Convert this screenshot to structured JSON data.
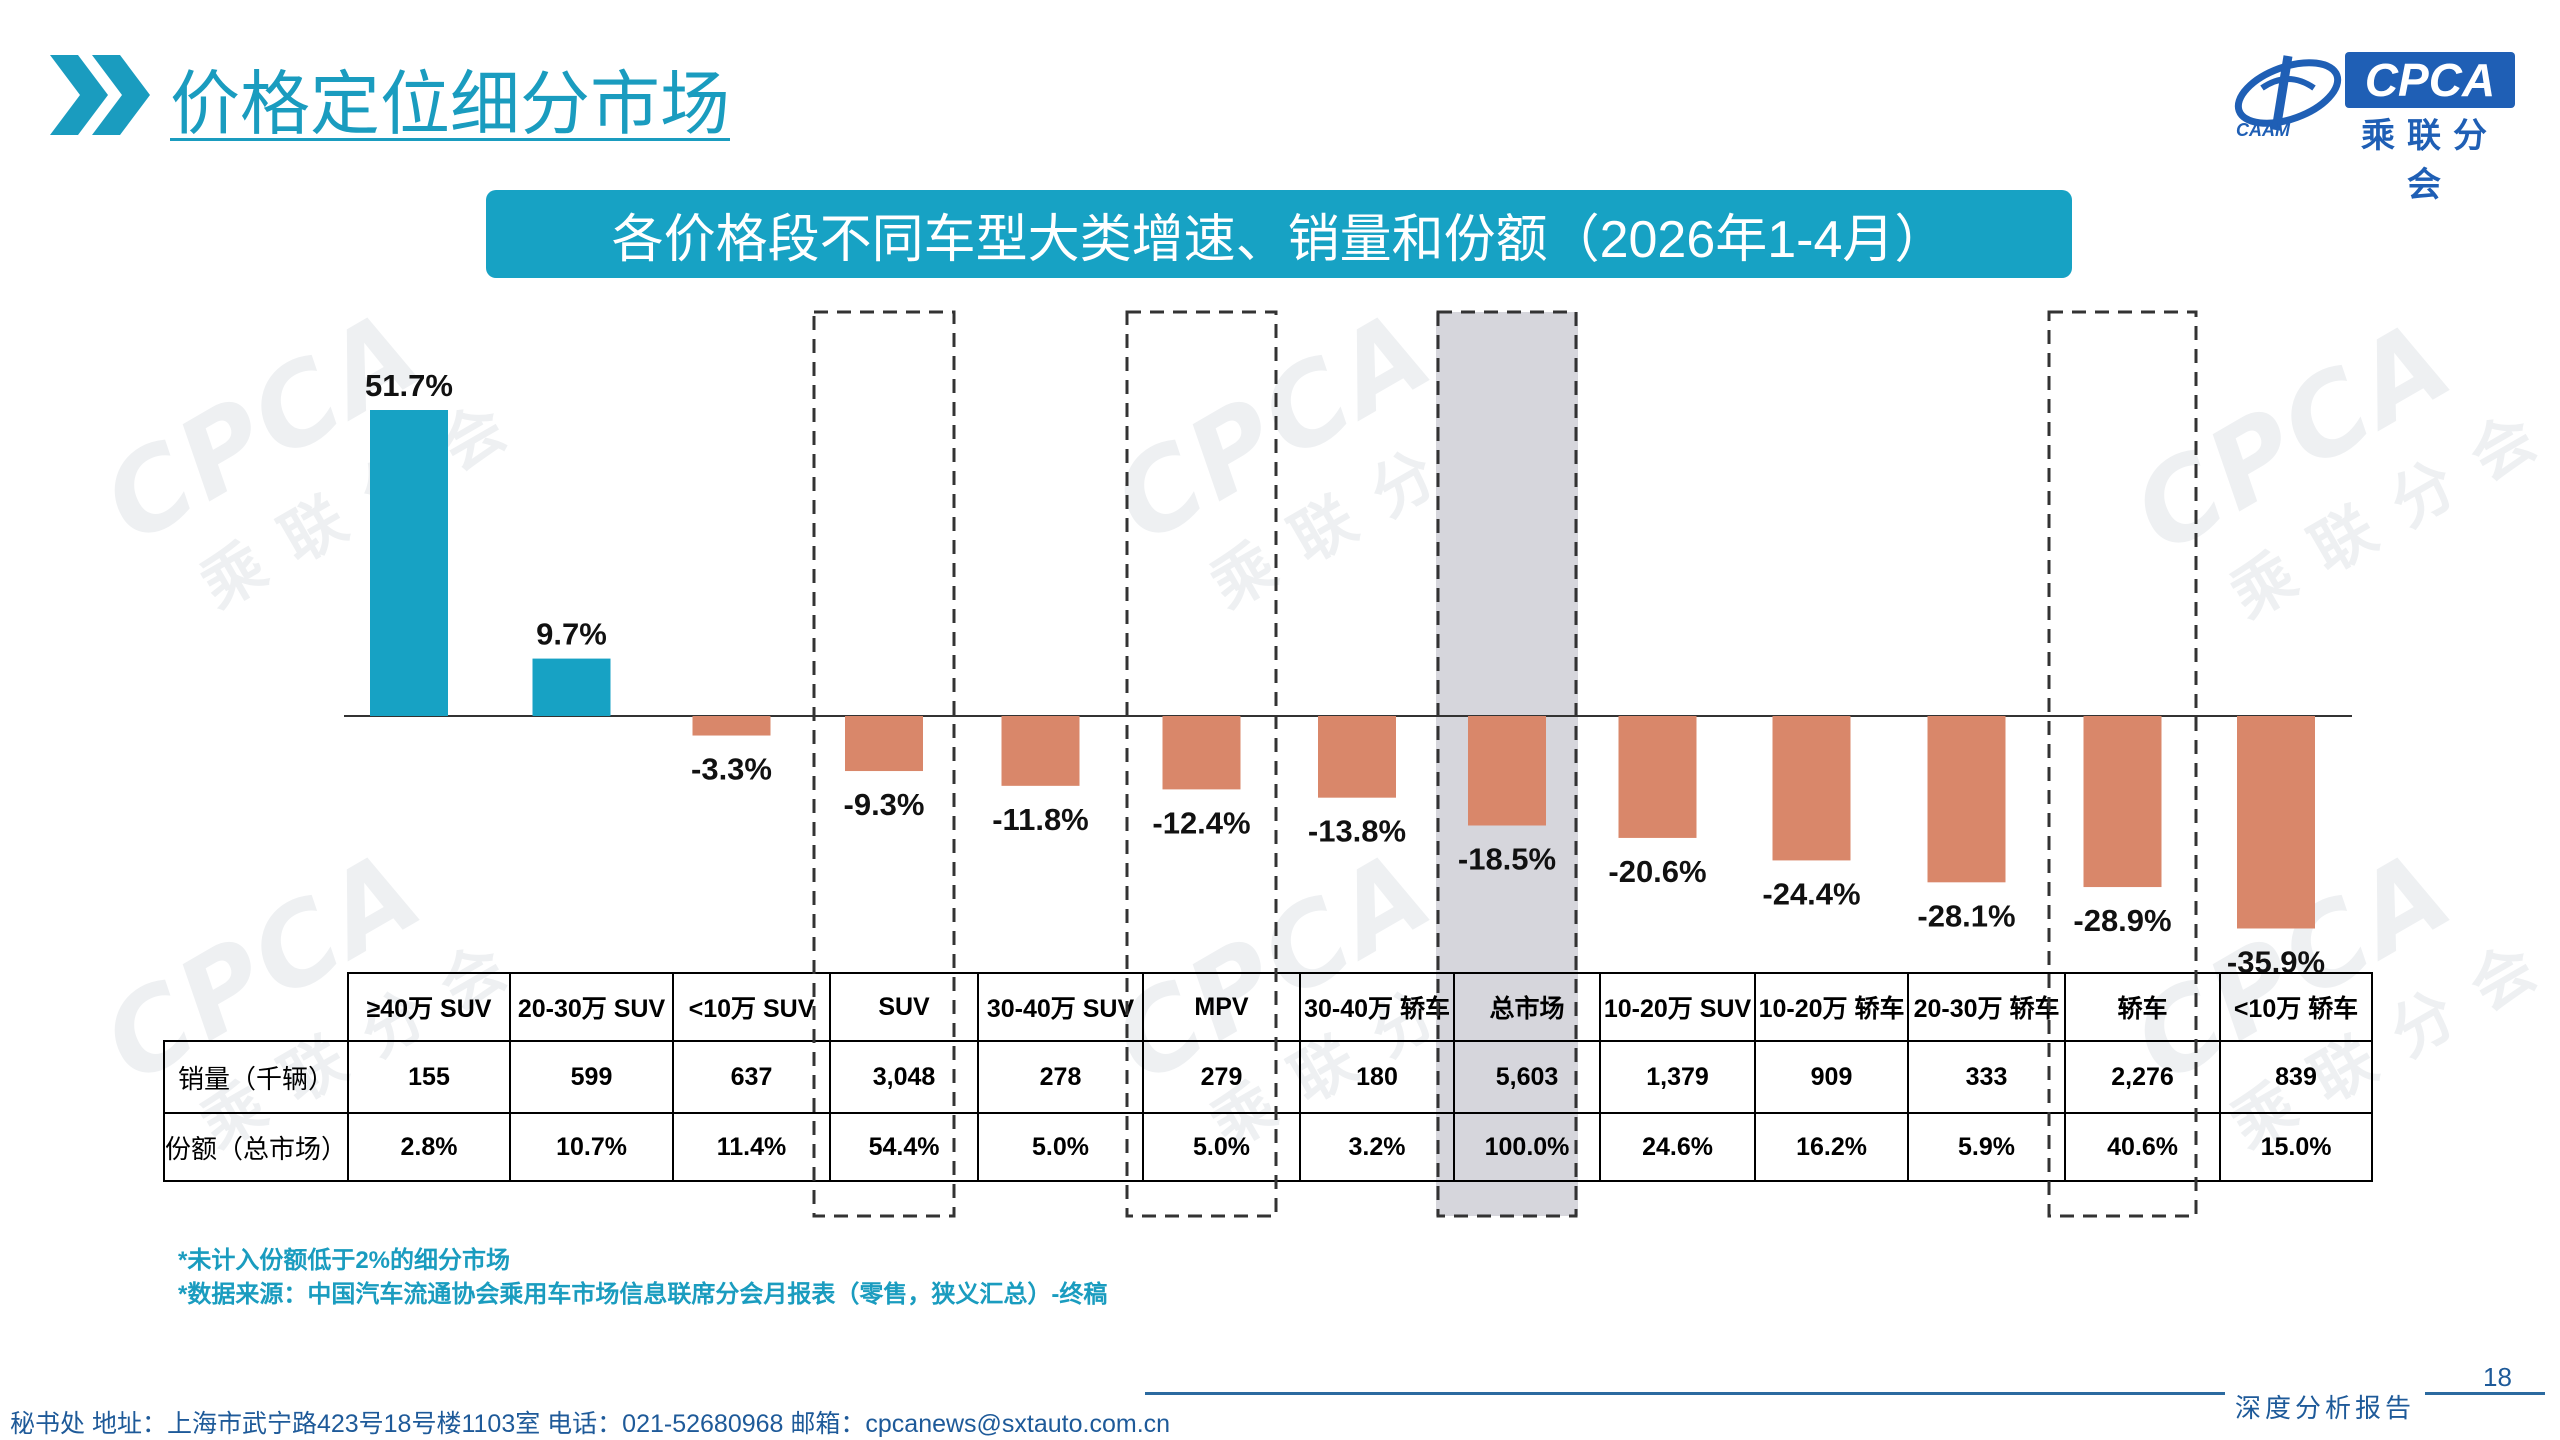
{
  "header": {
    "title": "价格定位细分市场",
    "logo_text": "CPCA",
    "logo_subtext": "乘联分会",
    "logo_small": "CAAM",
    "brand_color": "#1a9cbf"
  },
  "watermark": {
    "text": "CPCA",
    "subtext": "乘联分会"
  },
  "chart_data": {
    "type": "bar",
    "title": "各价格段不同车型大类增速、销量和份额（2026年1-4月）",
    "categories": [
      "≥40万 SUV",
      "20-30万 SUV",
      "<10万 SUV",
      "SUV",
      "30-40万 SUV",
      "MPV",
      "30-40万 轿车",
      "总市场",
      "10-20万 SUV",
      "10-20万 轿车",
      "20-30万 轿车",
      "轿车",
      "<10万 轿车"
    ],
    "values": [
      51.7,
      9.7,
      -3.3,
      -9.3,
      -11.8,
      -12.4,
      -13.8,
      -18.5,
      -20.6,
      -24.4,
      -28.1,
      -28.9,
      -35.9
    ],
    "data_labels": [
      "51.7%",
      "9.7%",
      "-3.3%",
      "-9.3%",
      "-11.8%",
      "-12.4%",
      "-13.8%",
      "-18.5%",
      "-20.6%",
      "-24.4%",
      "-28.1%",
      "-28.9%",
      "-35.9%"
    ],
    "ylim": [
      -45,
      55
    ],
    "positive_color": "#17a2c4",
    "negative_color": "#d9876a",
    "highlight_categories": [
      "SUV",
      "MPV",
      "总市场",
      "轿车"
    ],
    "shaded_category": "总市场",
    "grid": false,
    "legend": "none",
    "xlabel": "",
    "ylabel": ""
  },
  "table": {
    "row_labels": [
      "销量（千辆）",
      "份额（总市场）"
    ],
    "sales": [
      "155",
      "599",
      "637",
      "3,048",
      "278",
      "279",
      "180",
      "5,603",
      "1,379",
      "909",
      "333",
      "2,276",
      "839"
    ],
    "shares": [
      "2.8%",
      "10.7%",
      "11.4%",
      "54.4%",
      "5.0%",
      "5.0%",
      "3.2%",
      "100.0%",
      "24.6%",
      "16.2%",
      "5.9%",
      "40.6%",
      "15.0%"
    ]
  },
  "notes": [
    "*未计入份额低于2%的细分市场",
    "*数据来源：中国汽车流通协会乘用车市场信息联席分会月报表（零售，狭义汇总）-终稿"
  ],
  "footer": {
    "contact": "秘书处   地址：上海市武宁路423号18号楼1103室  电话：021-52680968   邮箱：cpcanews@sxtauto.com.cn",
    "tag": "深度分析报告",
    "page_number": "18"
  }
}
